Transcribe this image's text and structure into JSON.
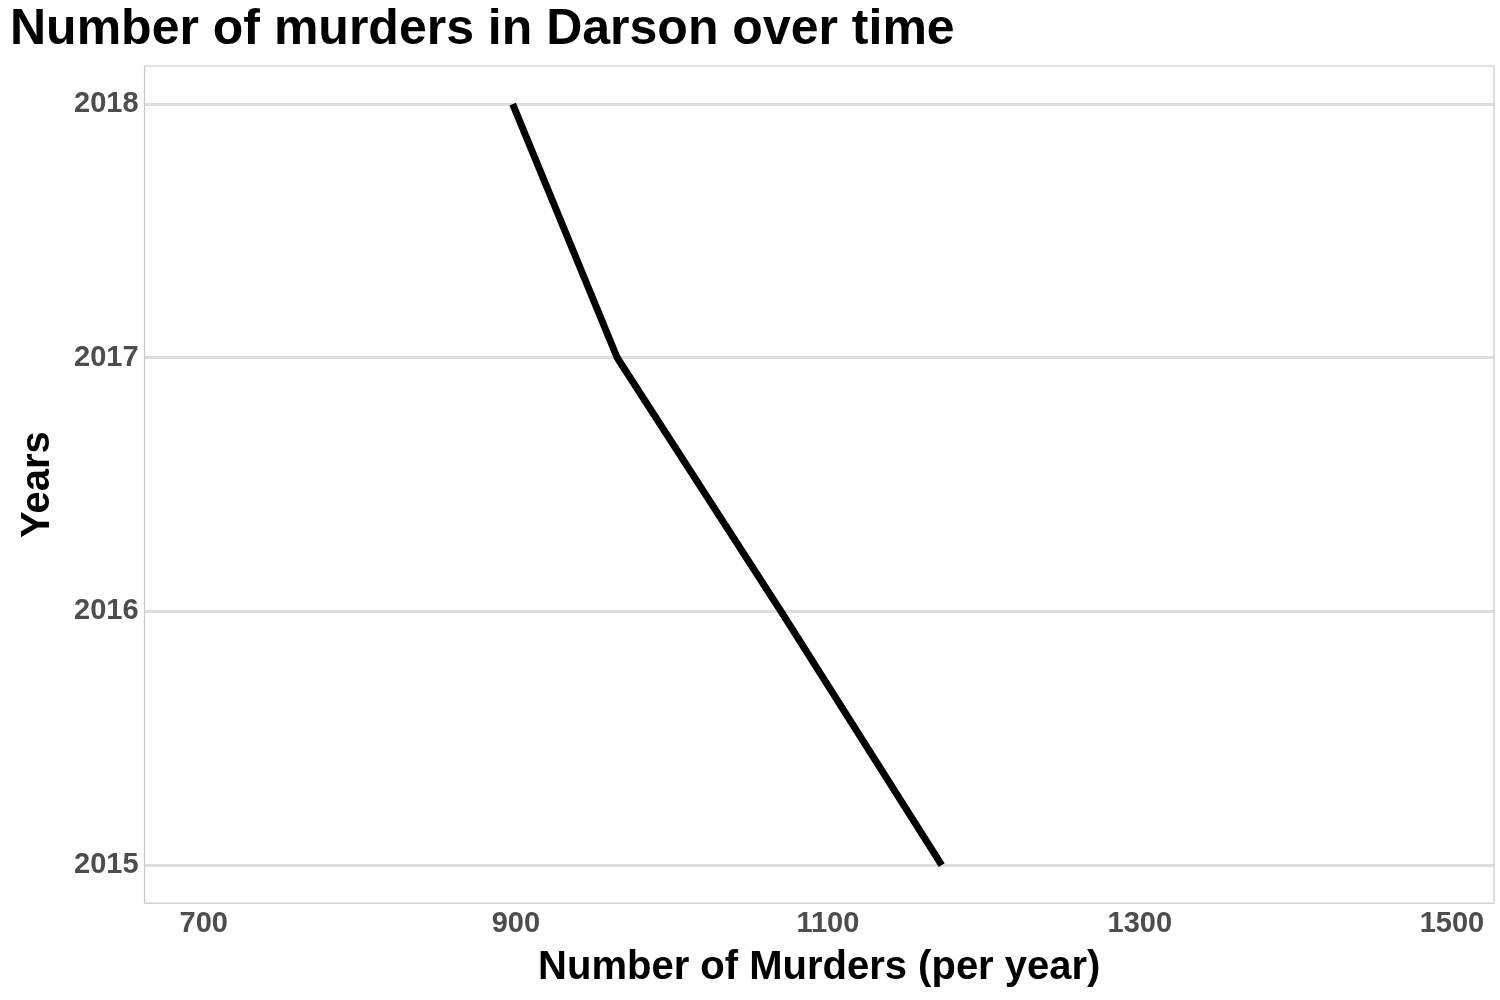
{
  "chart_data": {
    "type": "line",
    "title": "Number of murders in Darson over time",
    "xlabel": "Number of Murders (per year)",
    "ylabel": "Years",
    "x": [
      1173,
      1070,
      965,
      898
    ],
    "series": [
      {
        "color": "#000000",
        "values": [
          2015,
          2016,
          2017,
          2018
        ]
      }
    ],
    "xlim": [
      662,
      1527
    ],
    "xticks": [
      700,
      900,
      1100,
      1300,
      1500
    ],
    "ylim": [
      2014.85,
      2018.15
    ],
    "yticks": [
      2015,
      2016,
      2017,
      2018
    ],
    "grid": "y",
    "legend": false,
    "marker": "none",
    "line_style": "solid"
  }
}
